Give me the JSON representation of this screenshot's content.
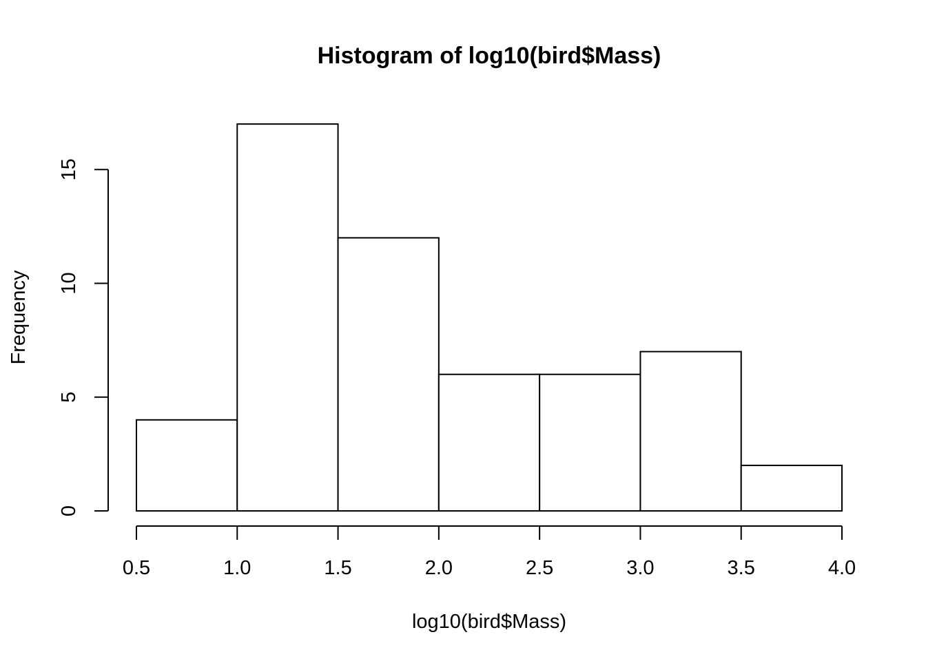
{
  "chart_data": {
    "type": "bar",
    "subtype": "histogram",
    "title": "Histogram of log10(bird$Mass)",
    "xlabel": "log10(bird$Mass)",
    "ylabel": "Frequency",
    "bins": [
      {
        "x0": 0.5,
        "x1": 1.0,
        "count": 4
      },
      {
        "x0": 1.0,
        "x1": 1.5,
        "count": 17
      },
      {
        "x0": 1.5,
        "x1": 2.0,
        "count": 12
      },
      {
        "x0": 2.0,
        "x1": 2.5,
        "count": 6
      },
      {
        "x0": 2.5,
        "x1": 3.0,
        "count": 6
      },
      {
        "x0": 3.0,
        "x1": 3.5,
        "count": 7
      },
      {
        "x0": 3.5,
        "x1": 4.0,
        "count": 2
      }
    ],
    "x_ticks": [
      "0.5",
      "1.0",
      "1.5",
      "2.0",
      "2.5",
      "3.0",
      "3.5",
      "4.0"
    ],
    "y_ticks": [
      "0",
      "5",
      "10",
      "15"
    ],
    "xlim": [
      0.5,
      4.0
    ],
    "ylim": [
      0,
      17
    ],
    "grid": false,
    "colors": {
      "bar_fill": "#ffffff",
      "bar_stroke": "#000000"
    }
  }
}
